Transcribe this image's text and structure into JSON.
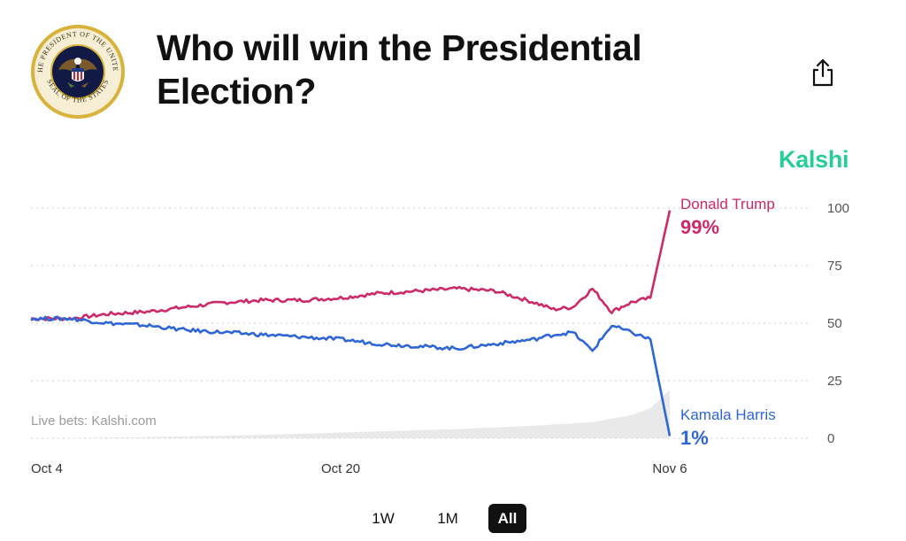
{
  "header": {
    "title": "Who will win the Presidential Election?",
    "seal": {
      "text_top": "THE PRESIDENT OF THE UNITED",
      "text_bottom": "SEAL OF THE STATES"
    },
    "share_icon": "share-icon"
  },
  "brand": {
    "name": "Kalshi",
    "color": "#28cc95"
  },
  "range_tabs": [
    {
      "label": "1W",
      "active": false
    },
    {
      "label": "1M",
      "active": false
    },
    {
      "label": "All",
      "active": true
    }
  ],
  "chart_data": {
    "type": "line",
    "watermark": "Live bets: Kalshi.com",
    "x_tick_labels": [
      "Oct 4",
      "Oct 20",
      "Nov 6"
    ],
    "y_ticks": [
      0,
      25,
      50,
      75,
      100
    ],
    "ylim": [
      0,
      100
    ],
    "grid": true,
    "x_start": "2024-10-04",
    "x_end": "2024-11-06",
    "series": [
      {
        "name": "Donald Trump",
        "final_label": "99%",
        "color": "#cc2a68",
        "points": [
          [
            "2024-10-04",
            52
          ],
          [
            "2024-10-06",
            52
          ],
          [
            "2024-10-08",
            54
          ],
          [
            "2024-10-10",
            55
          ],
          [
            "2024-10-12",
            57
          ],
          [
            "2024-10-14",
            59
          ],
          [
            "2024-10-16",
            60
          ],
          [
            "2024-10-18",
            60
          ],
          [
            "2024-10-20",
            61
          ],
          [
            "2024-10-22",
            63
          ],
          [
            "2024-10-24",
            64
          ],
          [
            "2024-10-26",
            65
          ],
          [
            "2024-10-28",
            64
          ],
          [
            "2024-10-30",
            59
          ],
          [
            "2024-10-31",
            56
          ],
          [
            "2024-11-01",
            57
          ],
          [
            "2024-11-02",
            65
          ],
          [
            "2024-11-03",
            55
          ],
          [
            "2024-11-04",
            59
          ],
          [
            "2024-11-05",
            61
          ],
          [
            "2024-11-06",
            99
          ]
        ]
      },
      {
        "name": "Kamala Harris",
        "final_label": "1%",
        "color": "#2f66d6",
        "points": [
          [
            "2024-10-04",
            52
          ],
          [
            "2024-10-06",
            52
          ],
          [
            "2024-10-08",
            50
          ],
          [
            "2024-10-10",
            49
          ],
          [
            "2024-10-12",
            47
          ],
          [
            "2024-10-14",
            46
          ],
          [
            "2024-10-16",
            45
          ],
          [
            "2024-10-18",
            44
          ],
          [
            "2024-10-20",
            43
          ],
          [
            "2024-10-22",
            41
          ],
          [
            "2024-10-24",
            40
          ],
          [
            "2024-10-26",
            39
          ],
          [
            "2024-10-28",
            41
          ],
          [
            "2024-10-30",
            43
          ],
          [
            "2024-10-31",
            45
          ],
          [
            "2024-11-01",
            46
          ],
          [
            "2024-11-02",
            38
          ],
          [
            "2024-11-03",
            49
          ],
          [
            "2024-11-04",
            46
          ],
          [
            "2024-11-05",
            43
          ],
          [
            "2024-11-06",
            1
          ]
        ]
      }
    ],
    "volume": {
      "color": "#e9e9e9",
      "points": [
        [
          "2024-10-04",
          0
        ],
        [
          "2024-10-10",
          0.5
        ],
        [
          "2024-10-16",
          1.5
        ],
        [
          "2024-10-20",
          2.5
        ],
        [
          "2024-10-26",
          4
        ],
        [
          "2024-10-30",
          5.5
        ],
        [
          "2024-11-02",
          7
        ],
        [
          "2024-11-04",
          10
        ],
        [
          "2024-11-05",
          13
        ],
        [
          "2024-11-06",
          21
        ]
      ]
    }
  }
}
